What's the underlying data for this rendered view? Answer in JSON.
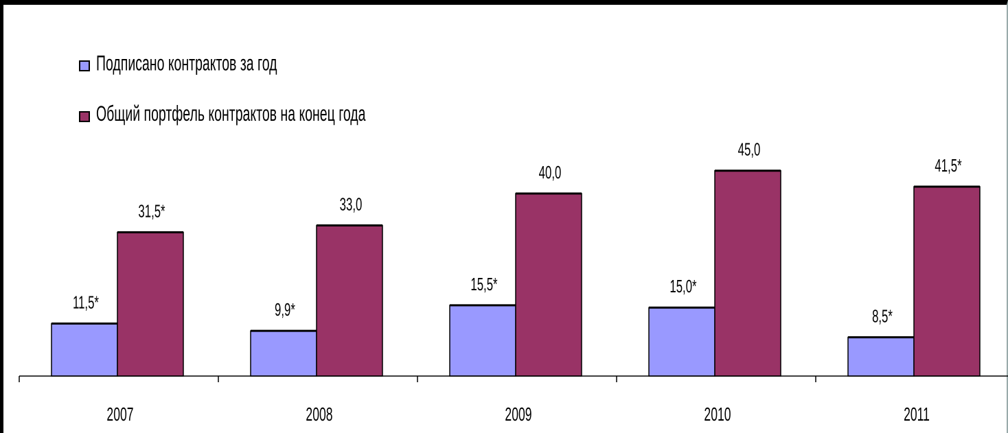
{
  "chart_data": {
    "type": "bar",
    "categories": [
      "2007",
      "2008",
      "2009",
      "2010",
      "2011"
    ],
    "series": [
      {
        "name": "Подписано контрактов за год",
        "color": "#9999ff",
        "values": [
          11.5,
          9.9,
          15.5,
          15.0,
          8.5
        ],
        "labels": [
          "11,5*",
          "9,9*",
          "15,5*",
          "15,0*",
          "8,5*"
        ]
      },
      {
        "name": "Общий портфель контрактов на конец года",
        "color": "#993366",
        "values": [
          31.5,
          33.0,
          40.0,
          45.0,
          41.5
        ],
        "labels": [
          "31,5*",
          "33,0",
          "40,0",
          "45,0",
          "41,5*"
        ]
      }
    ],
    "ylim": [
      0,
      50
    ],
    "grid": false,
    "legend_position": "top-left"
  }
}
